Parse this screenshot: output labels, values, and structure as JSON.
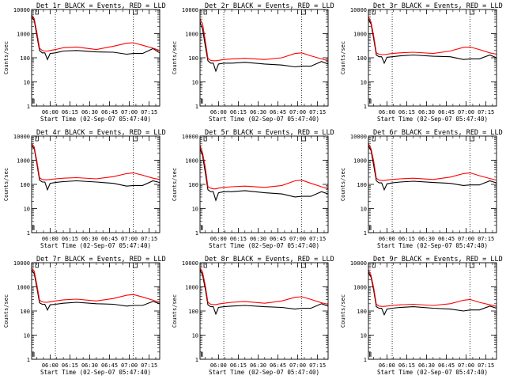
{
  "chart_data": {
    "type": "line",
    "layout": "3x3 grid",
    "y_scale": "log",
    "ylim": [
      1,
      10000
    ],
    "y_ticks": [
      "1",
      "10",
      "100",
      "1000",
      "10000"
    ],
    "ylabel": "Counts/sec",
    "x_ticks": [
      "06:00",
      "06:15",
      "06:30",
      "06:45",
      "07:00",
      "07:15"
    ],
    "x_tick_minutes": [
      0,
      15,
      30,
      45,
      60,
      75
    ],
    "x_range_minutes": [
      -14,
      83
    ],
    "xlabel": "Start Time (02-Sep-07 05:47:40)",
    "series_colors": {
      "Events": "#000000",
      "LLD": "#ff0000"
    },
    "series_names": [
      "Events",
      "LLD"
    ],
    "marker_lines_minutes": [
      4,
      63
    ],
    "panels": [
      {
        "title": "Det 1r BLACK = Events, RED = LLD",
        "x": [
          -14,
          -12,
          -10,
          -8,
          -6,
          -4,
          -2,
          0,
          4,
          10,
          20,
          35,
          48,
          58,
          63,
          70,
          78,
          83
        ],
        "series": [
          {
            "name": "Events",
            "values": [
              5000,
              3500,
              800,
              200,
              160,
              160,
              85,
              150,
              160,
              190,
              200,
              175,
              170,
              140,
              150,
              150,
              240,
              160
            ]
          },
          {
            "name": "LLD",
            "values": [
              6000,
              4200,
              1100,
              250,
              200,
              190,
              190,
              200,
              220,
              260,
              280,
              220,
              300,
              400,
              420,
              330,
              250,
              200
            ]
          }
        ]
      },
      {
        "title": "Det 2r BLACK = Events, RED = LLD",
        "x": [
          -14,
          -12,
          -10,
          -8,
          -6,
          -4,
          -2,
          0,
          4,
          10,
          20,
          35,
          48,
          58,
          63,
          70,
          78,
          83
        ],
        "series": [
          {
            "name": "Events",
            "values": [
              3000,
              1500,
              300,
              75,
              60,
              60,
              28,
              55,
              60,
              60,
              65,
              55,
              50,
              42,
              45,
              45,
              70,
              55
            ]
          },
          {
            "name": "LLD",
            "values": [
              4000,
              2500,
              500,
              95,
              78,
              75,
              75,
              78,
              85,
              90,
              95,
              85,
              100,
              150,
              160,
              120,
              90,
              75
            ]
          }
        ]
      },
      {
        "title": "Det 3r BLACK = Events, RED = LLD",
        "x": [
          -14,
          -12,
          -10,
          -8,
          -6,
          -4,
          -2,
          0,
          4,
          10,
          20,
          35,
          48,
          58,
          63,
          70,
          78,
          83
        ],
        "series": [
          {
            "name": "Events",
            "values": [
              4000,
              2500,
              600,
              130,
              110,
              110,
              60,
              105,
              110,
              120,
              130,
              115,
              110,
              85,
              90,
              90,
              130,
              100
            ]
          },
          {
            "name": "LLD",
            "values": [
              5000,
              3000,
              800,
              160,
              140,
              135,
              135,
              140,
              150,
              160,
              170,
              150,
              190,
              270,
              280,
              220,
              160,
              140
            ]
          }
        ]
      },
      {
        "title": "Det 4r BLACK = Events, RED = LLD",
        "x": [
          -14,
          -12,
          -10,
          -8,
          -6,
          -4,
          -2,
          0,
          4,
          10,
          20,
          35,
          48,
          58,
          63,
          70,
          78,
          83
        ],
        "series": [
          {
            "name": "Events",
            "values": [
              4000,
              3000,
              700,
              150,
              125,
              125,
              60,
              110,
              120,
              130,
              140,
              125,
              110,
              85,
              90,
              90,
              140,
              120
            ]
          },
          {
            "name": "LLD",
            "values": [
              5000,
              3500,
              900,
              190,
              160,
              155,
              155,
              160,
              170,
              180,
              190,
              170,
              210,
              280,
              300,
              240,
              180,
              160
            ]
          }
        ]
      },
      {
        "title": "Det 5r BLACK = Events, RED = LLD",
        "x": [
          -14,
          -12,
          -10,
          -8,
          -6,
          -4,
          -2,
          0,
          4,
          10,
          20,
          35,
          48,
          58,
          63,
          70,
          78,
          83
        ],
        "series": [
          {
            "name": "Events",
            "values": [
              3000,
              1500,
              300,
              60,
              50,
              50,
              22,
              45,
              50,
              50,
              55,
              45,
              40,
              30,
              32,
              32,
              50,
              40
            ]
          },
          {
            "name": "LLD",
            "values": [
              4000,
              2000,
              500,
              80,
              70,
              65,
              65,
              70,
              75,
              80,
              85,
              75,
              90,
              140,
              150,
              110,
              80,
              65
            ]
          }
        ]
      },
      {
        "title": "Det 6r BLACK = Events, RED = LLD",
        "x": [
          -14,
          -12,
          -10,
          -8,
          -6,
          -4,
          -2,
          0,
          4,
          10,
          20,
          35,
          48,
          58,
          63,
          70,
          78,
          83
        ],
        "series": [
          {
            "name": "Events",
            "values": [
              4000,
              2500,
              600,
              140,
              115,
              115,
              60,
              105,
              115,
              125,
              135,
              120,
              110,
              90,
              95,
              95,
              140,
              115
            ]
          },
          {
            "name": "LLD",
            "values": [
              5000,
              3000,
              900,
              180,
              150,
              145,
              145,
              150,
              160,
              170,
              180,
              160,
              200,
              280,
              300,
              230,
              175,
              150
            ]
          }
        ]
      },
      {
        "title": "Det 7r BLACK = Events, RED = LLD",
        "x": [
          -14,
          -12,
          -10,
          -8,
          -6,
          -4,
          -2,
          0,
          4,
          10,
          20,
          35,
          48,
          58,
          63,
          70,
          78,
          83
        ],
        "series": [
          {
            "name": "Events",
            "values": [
              5000,
              3500,
              900,
              220,
              190,
              190,
              110,
              180,
              190,
              210,
              230,
              200,
              190,
              160,
              170,
              170,
              250,
              200
            ]
          },
          {
            "name": "LLD",
            "values": [
              6000,
              4500,
              1200,
              280,
              240,
              230,
              230,
              240,
              260,
              290,
              310,
              260,
              330,
              450,
              480,
              380,
              280,
              230
            ]
          }
        ]
      },
      {
        "title": "Det 8r BLACK = Events, RED = LLD",
        "x": [
          -14,
          -12,
          -10,
          -8,
          -6,
          -4,
          -2,
          0,
          4,
          10,
          20,
          35,
          48,
          58,
          63,
          70,
          78,
          83
        ],
        "series": [
          {
            "name": "Events",
            "values": [
              5000,
              3000,
              800,
              180,
              150,
              150,
              75,
              140,
              150,
              160,
              170,
              150,
              140,
              120,
              130,
              130,
              200,
              160
            ]
          },
          {
            "name": "LLD",
            "values": [
              6000,
              4000,
              1100,
              230,
              190,
              185,
              185,
              195,
              210,
              230,
              245,
              210,
              260,
              370,
              390,
              300,
              220,
              190
            ]
          }
        ]
      },
      {
        "title": "Det 9r BLACK = Events, RED = LLD",
        "x": [
          -14,
          -12,
          -10,
          -8,
          -6,
          -4,
          -2,
          0,
          4,
          10,
          20,
          35,
          48,
          58,
          63,
          70,
          78,
          83
        ],
        "series": [
          {
            "name": "Events",
            "values": [
              4000,
              2500,
              700,
              150,
              130,
              130,
              70,
              120,
              130,
              140,
              150,
              130,
              120,
              100,
              110,
              110,
              160,
              130
            ]
          },
          {
            "name": "LLD",
            "values": [
              5000,
              3000,
              900,
              190,
              160,
              155,
              155,
              160,
              170,
              180,
              190,
              170,
              200,
              280,
              300,
              230,
              180,
              155
            ]
          }
        ]
      }
    ]
  }
}
